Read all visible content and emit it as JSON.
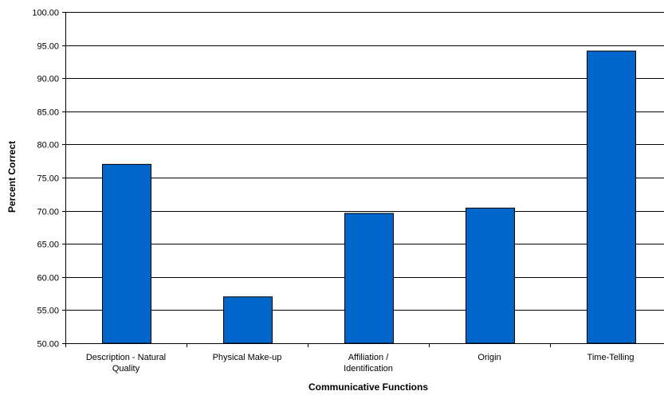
{
  "chart_data": {
    "type": "bar",
    "title": "",
    "xlabel": "Communicative Functions",
    "ylabel": "Percent Correct",
    "categories": [
      [
        "Description - Natural",
        "Quality"
      ],
      [
        "Physical Make-up"
      ],
      [
        "Affiliation /",
        "Identification"
      ],
      [
        "Origin"
      ],
      [
        "Time-Telling"
      ]
    ],
    "values": [
      77.0,
      57.0,
      69.6,
      70.4,
      94.1
    ],
    "ylim": [
      50,
      100
    ],
    "yticks": [
      "50.00",
      "55.00",
      "60.00",
      "65.00",
      "70.00",
      "75.00",
      "80.00",
      "85.00",
      "90.00",
      "95.00",
      "100.00"
    ],
    "grid": true,
    "legend": "none",
    "colors": {
      "bar": "#0066CC",
      "bar_stroke": "#000000",
      "grid": "#000000"
    }
  }
}
